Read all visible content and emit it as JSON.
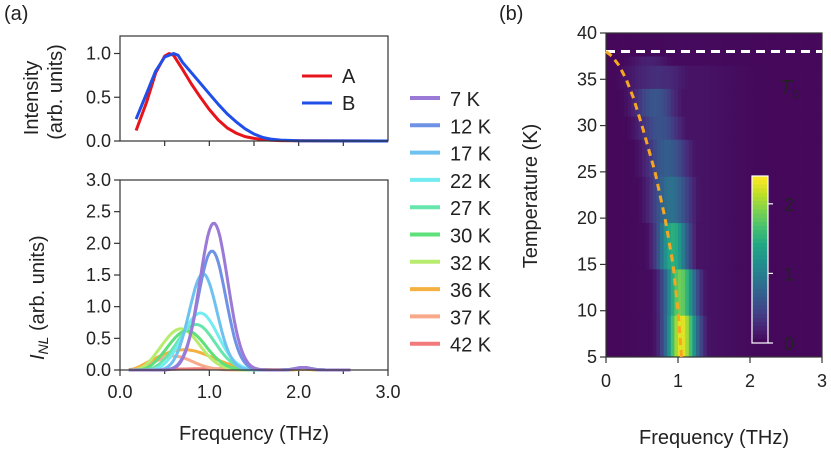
{
  "panels": {
    "a": "(a)",
    "b": "(b)"
  },
  "chart_data": [
    {
      "type": "line",
      "panel": "(a) top",
      "xlabel": "",
      "ylabel": [
        "Intensity",
        "(arb. units)"
      ],
      "xlim": [
        0,
        3.0
      ],
      "ylim": [
        0,
        1.2
      ],
      "yticks": [
        "0.0",
        "0.5",
        "1.0"
      ],
      "series": [
        {
          "name": "A",
          "color": "#e8141b",
          "x": [
            0.18,
            0.3,
            0.4,
            0.5,
            0.55,
            0.6,
            0.7,
            0.8,
            0.9,
            1.0,
            1.1,
            1.2,
            1.3,
            1.4,
            1.5,
            1.6,
            1.7,
            1.8,
            2.0,
            2.4,
            3.0
          ],
          "y": [
            0.12,
            0.45,
            0.78,
            0.97,
            1.0,
            0.98,
            0.82,
            0.65,
            0.5,
            0.36,
            0.24,
            0.15,
            0.09,
            0.05,
            0.03,
            0.015,
            0.008,
            0.005,
            0.002,
            0.001,
            0.0
          ]
        },
        {
          "name": "B",
          "color": "#1f4ee8",
          "x": [
            0.18,
            0.3,
            0.4,
            0.5,
            0.6,
            0.65,
            0.7,
            0.8,
            0.9,
            1.0,
            1.1,
            1.2,
            1.3,
            1.4,
            1.5,
            1.6,
            1.7,
            1.8,
            2.0,
            2.4,
            3.0
          ],
          "y": [
            0.25,
            0.55,
            0.8,
            0.96,
            1.0,
            0.98,
            0.9,
            0.78,
            0.66,
            0.54,
            0.42,
            0.31,
            0.22,
            0.14,
            0.08,
            0.04,
            0.02,
            0.01,
            0.004,
            0.001,
            0.0
          ]
        }
      ]
    },
    {
      "type": "line",
      "panel": "(a) bottom",
      "xlabel": "Frequency (THz)",
      "ylabel": [
        "I",
        "NL",
        " (arb. units)"
      ],
      "xlim": [
        0,
        3.0
      ],
      "ylim": [
        0,
        3.0
      ],
      "xticks": [
        "0.0",
        "1.0",
        "2.0",
        "3.0"
      ],
      "yticks": [
        "0.0",
        "0.5",
        "1.0",
        "1.5",
        "2.0",
        "2.5",
        "3.0"
      ],
      "series": [
        {
          "name": "7 K",
          "color": "#9b79d6",
          "peak_x": 1.05,
          "peak_y": 2.32,
          "width": 0.22,
          "onset": 0.55
        },
        {
          "name": "12 K",
          "color": "#6f92e6",
          "peak_x": 1.03,
          "peak_y": 1.88,
          "width": 0.22,
          "onset": 0.5
        },
        {
          "name": "17 K",
          "color": "#6fc2f0",
          "peak_x": 0.93,
          "peak_y": 1.52,
          "width": 0.22,
          "onset": 0.45
        },
        {
          "name": "22 K",
          "color": "#72ecf0",
          "peak_x": 0.9,
          "peak_y": 0.9,
          "width": 0.28,
          "onset": 0.4
        },
        {
          "name": "27 K",
          "color": "#66e6ad",
          "peak_x": 0.85,
          "peak_y": 0.72,
          "width": 0.3,
          "onset": 0.35
        },
        {
          "name": "30 K",
          "color": "#5ee07a",
          "peak_x": 0.75,
          "peak_y": 0.62,
          "width": 0.3,
          "onset": 0.3
        },
        {
          "name": "32 K",
          "color": "#b8ec6e",
          "peak_x": 0.68,
          "peak_y": 0.65,
          "width": 0.3,
          "onset": 0.25
        },
        {
          "name": "36 K",
          "color": "#f5b042",
          "peak_x": 0.72,
          "peak_y": 0.32,
          "width": 0.45,
          "onset": 0.2
        },
        {
          "name": "37 K",
          "color": "#f7a98a",
          "peak_x": 0.6,
          "peak_y": 0.22,
          "width": 0.3,
          "onset": 0.2
        },
        {
          "name": "42 K",
          "color": "#f27a7a",
          "peak_x": 1.0,
          "peak_y": 0.02,
          "width": 0.6,
          "onset": 0.1
        }
      ]
    },
    {
      "type": "heatmap",
      "panel": "(b)",
      "xlabel": "Frequency (THz)",
      "ylabel": "Temperature (K)",
      "xlim": [
        0,
        3
      ],
      "ylim": [
        5,
        40
      ],
      "xticks": [
        "0",
        "1",
        "2",
        "3"
      ],
      "yticks": [
        "5",
        "10",
        "15",
        "20",
        "25",
        "30",
        "35",
        "40"
      ],
      "colorbar": {
        "ticks": [
          "0",
          "1",
          "2"
        ],
        "range": [
          0,
          2.4
        ]
      },
      "rows": [
        {
          "T": 7,
          "peak": 1.05,
          "amp": 2.32,
          "width": 0.22
        },
        {
          "T": 12,
          "peak": 1.03,
          "amp": 1.88,
          "width": 0.22
        },
        {
          "T": 17,
          "peak": 0.93,
          "amp": 1.52,
          "width": 0.22
        },
        {
          "T": 22,
          "peak": 0.9,
          "amp": 0.9,
          "width": 0.28
        },
        {
          "T": 27,
          "peak": 0.85,
          "amp": 0.72,
          "width": 0.3
        },
        {
          "T": 30,
          "peak": 0.75,
          "amp": 0.62,
          "width": 0.3
        },
        {
          "T": 32,
          "peak": 0.68,
          "amp": 0.65,
          "width": 0.3
        },
        {
          "T": 36,
          "peak": 0.72,
          "amp": 0.32,
          "width": 0.45
        },
        {
          "T": 37,
          "peak": 0.6,
          "amp": 0.22,
          "width": 0.3
        },
        {
          "T": 42,
          "peak": 1.0,
          "amp": 0.02,
          "width": 0.6
        }
      ],
      "tc_line": {
        "T": 38,
        "label": "T",
        "label_sub": "c",
        "color": "#ffffff"
      },
      "gap_curve": {
        "color": "#f5a623",
        "T": [
          5,
          10,
          15,
          20,
          25,
          30,
          33,
          35,
          36.5,
          37.5,
          38
        ],
        "x": [
          1.05,
          1.0,
          0.93,
          0.82,
          0.68,
          0.5,
          0.38,
          0.28,
          0.18,
          0.08,
          0.0
        ]
      }
    }
  ]
}
